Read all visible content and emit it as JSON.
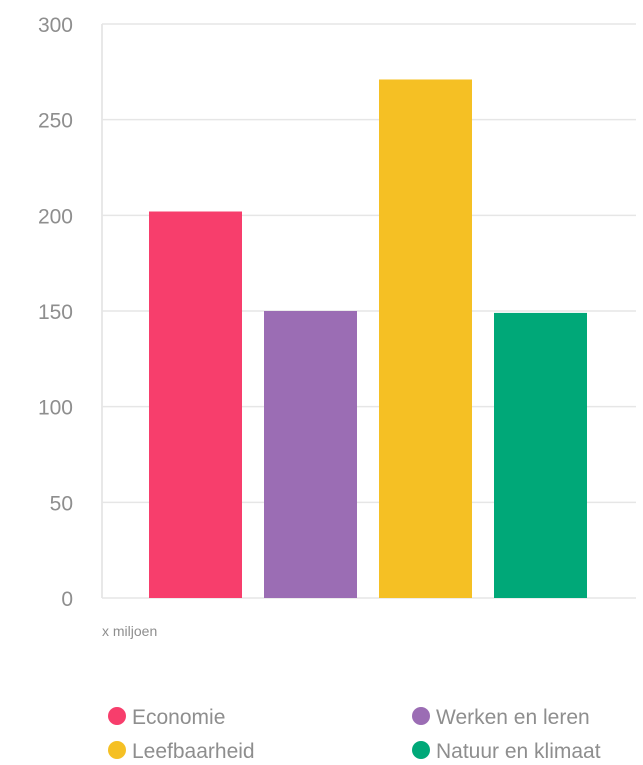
{
  "chart_data": {
    "type": "bar",
    "categories": [
      "Economie",
      "Werken en leren",
      "Leefbaarheid",
      "Natuur en klimaat"
    ],
    "values": [
      202,
      150,
      271,
      149
    ],
    "colors": [
      "#f73e6c",
      "#9b6db4",
      "#f5c024",
      "#00a878"
    ],
    "unit_label": "x miljoen",
    "ylim": [
      0,
      300
    ],
    "yticks": [
      0,
      50,
      100,
      150,
      200,
      250,
      300
    ],
    "grid": true,
    "legend_position": "bottom",
    "legend": [
      {
        "label": "Economie",
        "color": "#f73e6c"
      },
      {
        "label": "Werken en leren",
        "color": "#9b6db4"
      },
      {
        "label": "Leefbaarheid",
        "color": "#f5c024"
      },
      {
        "label": "Natuur en klimaat",
        "color": "#00a878"
      }
    ]
  }
}
